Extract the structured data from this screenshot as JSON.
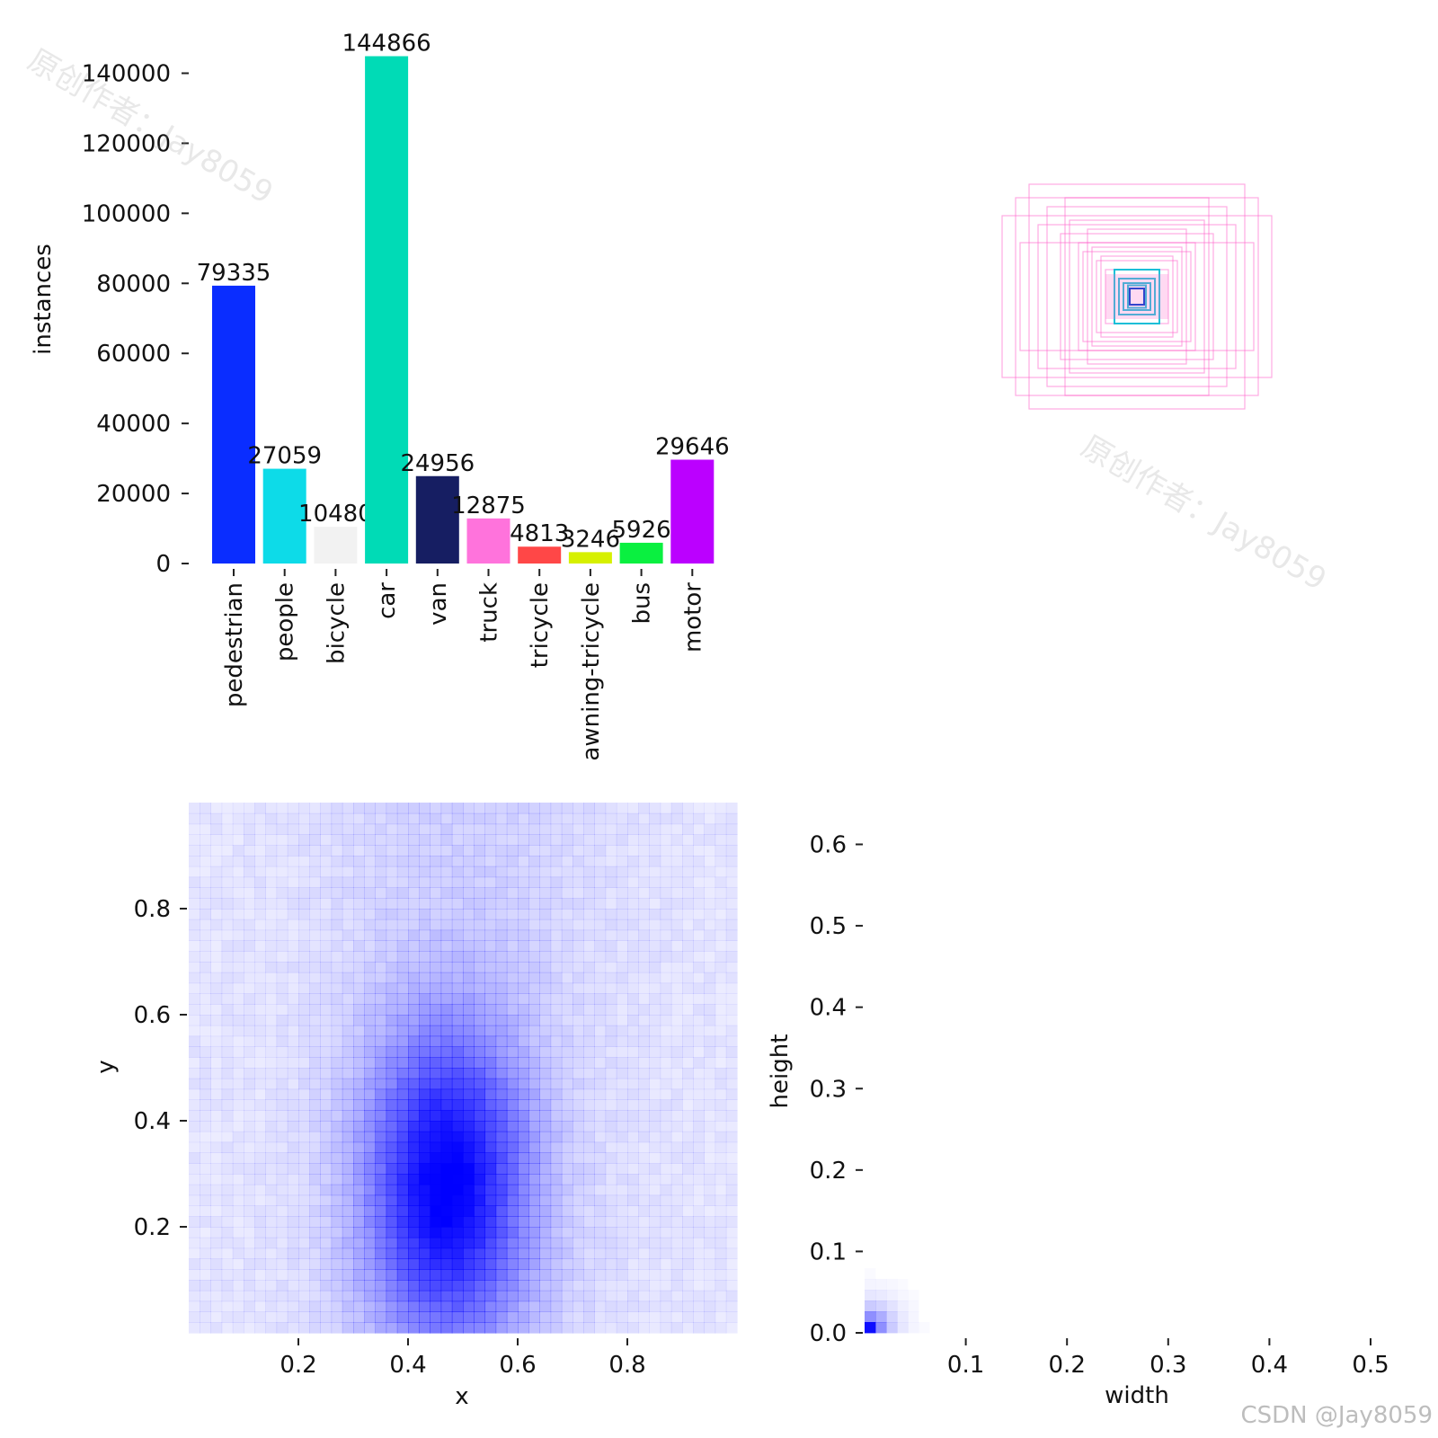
{
  "colors": {
    "heat": "#0000ff",
    "box_outer": "#ff66cc",
    "box_inner": "#00bcd4"
  },
  "watermark": {
    "text": "原创作者：Jay8059",
    "credit": "CSDN @Jay8059"
  },
  "chart_data": [
    {
      "type": "bar",
      "title": "",
      "ylabel": "instances",
      "ylim": [
        0,
        145000
      ],
      "yticks": [
        "0",
        "20000",
        "40000",
        "60000",
        "80000",
        "100000",
        "120000",
        "140000"
      ],
      "categories": [
        "pedestrian",
        "people",
        "bicycle",
        "car",
        "van",
        "truck",
        "tricycle",
        "awning-tricycle",
        "bus",
        "motor"
      ],
      "values": [
        79335,
        27059,
        10480,
        144866,
        24956,
        12875,
        4813,
        3246,
        5926,
        29646
      ],
      "value_labels": [
        "79335",
        "27059",
        "10480",
        "144866",
        "24956",
        "12875",
        "4813",
        "3246",
        "5926",
        "29646"
      ],
      "bar_colors": [
        "#0a2dff",
        "#0ddbe8",
        "#f2f2f2",
        "#00dbb6",
        "#161e62",
        "#ff73dc",
        "#ff4747",
        "#d6f000",
        "#0af040",
        "#bb00ff"
      ]
    },
    {
      "type": "scatter",
      "title": "",
      "description": "overlay of centered label box outlines (width x height)",
      "boxes": [
        [
          0.27,
          0.22,
          "outer"
        ],
        [
          0.3,
          0.18,
          "outer"
        ],
        [
          0.24,
          0.25,
          "outer"
        ],
        [
          0.2,
          0.2,
          "outer"
        ],
        [
          0.17,
          0.14,
          "outer"
        ],
        [
          0.15,
          0.17,
          "outer"
        ],
        [
          0.13,
          0.12,
          "outer"
        ],
        [
          0.12,
          0.1,
          "outer"
        ],
        [
          0.1,
          0.11,
          "outer"
        ],
        [
          0.09,
          0.08,
          "outer"
        ],
        [
          0.08,
          0.09,
          "outer"
        ],
        [
          0.07,
          0.06,
          "outer"
        ],
        [
          0.22,
          0.16,
          "outer"
        ],
        [
          0.26,
          0.12,
          "outer"
        ],
        [
          0.16,
          0.22,
          "outer"
        ],
        [
          0.11,
          0.15,
          "outer"
        ],
        [
          0.05,
          0.06,
          "inner"
        ],
        [
          0.04,
          0.04,
          "inner"
        ],
        [
          0.03,
          0.03,
          "inner"
        ],
        [
          0.02,
          0.025,
          "inner"
        ]
      ]
    },
    {
      "type": "heatmap",
      "xlabel": "x",
      "ylabel": "y",
      "xlim": [
        0,
        1
      ],
      "ylim": [
        0,
        1
      ],
      "xticks": [
        "0.2",
        "0.4",
        "0.6",
        "0.8"
      ],
      "yticks": [
        "0.2",
        "0.4",
        "0.6",
        "0.8"
      ],
      "peak": [
        0.47,
        0.28
      ]
    },
    {
      "type": "heatmap",
      "xlabel": "width",
      "ylabel": "height",
      "xlim": [
        0,
        0.5
      ],
      "ylim": [
        0,
        0.62
      ],
      "xticks": [
        "0.1",
        "0.2",
        "0.3",
        "0.4",
        "0.5"
      ],
      "yticks": [
        "0.0",
        "0.1",
        "0.2",
        "0.3",
        "0.4",
        "0.5",
        "0.6"
      ],
      "peak": [
        0.005,
        0.01
      ]
    }
  ]
}
